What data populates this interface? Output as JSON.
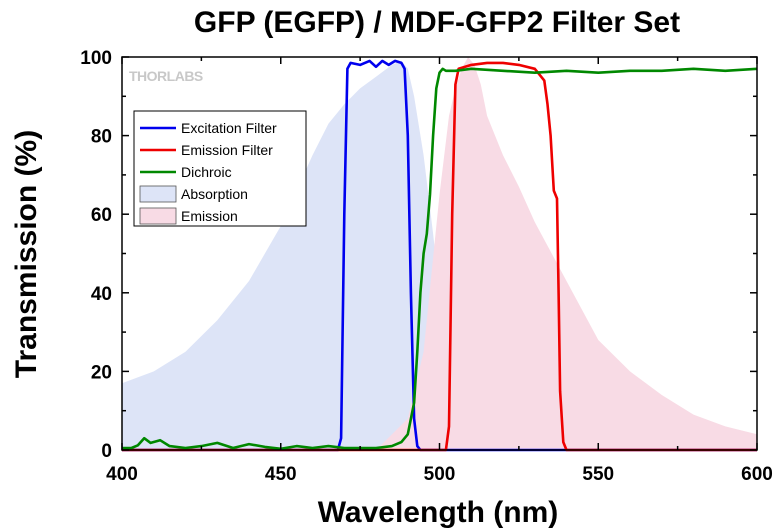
{
  "chart_data": {
    "type": "line",
    "title": "GFP (EGFP) / MDF-GFP2 Filter Set",
    "xlabel": "Wavelength (nm)",
    "ylabel": "Transmission (%)",
    "xlim": [
      400,
      600
    ],
    "ylim": [
      0,
      100
    ],
    "xticks": [
      400,
      450,
      500,
      550,
      600
    ],
    "yticks": [
      0,
      20,
      40,
      60,
      80,
      100
    ],
    "watermark": "THORLABS",
    "legend_position": "upper-left",
    "series": [
      {
        "name": "Excitation Filter",
        "kind": "line",
        "color": "#0000ee",
        "x": [
          400,
          468,
          469,
          470,
          471,
          472,
          475,
          478,
          480,
          482,
          484,
          486,
          488,
          489,
          490,
          491,
          492,
          493,
          494,
          600
        ],
        "y": [
          0,
          0,
          3,
          60,
          97,
          98.5,
          98,
          99,
          97.5,
          99,
          98,
          99,
          98.5,
          97,
          80,
          40,
          8,
          1,
          0,
          0
        ]
      },
      {
        "name": "Emission Filter",
        "kind": "line",
        "color": "#ee0000",
        "x": [
          400,
          502,
          503,
          504,
          505,
          506,
          510,
          515,
          520,
          525,
          530,
          533,
          534,
          535,
          536,
          537,
          537.5,
          538,
          539,
          540,
          600
        ],
        "y": [
          0,
          0,
          6,
          60,
          93,
          97,
          98,
          98.5,
          98.5,
          98,
          97,
          94,
          88,
          80,
          66,
          64,
          40,
          15,
          2,
          0,
          0
        ]
      },
      {
        "name": "Dichroic",
        "kind": "line",
        "color": "#008800",
        "x": [
          400,
          403,
          405,
          407,
          409,
          412,
          415,
          420,
          425,
          430,
          435,
          440,
          445,
          450,
          455,
          460,
          465,
          470,
          475,
          480,
          485,
          488,
          490,
          492,
          493,
          494,
          495,
          496,
          497,
          498,
          499,
          500,
          501,
          502,
          505,
          510,
          520,
          530,
          540,
          550,
          560,
          570,
          580,
          590,
          600
        ],
        "y": [
          0.5,
          0.5,
          1.2,
          3,
          1.8,
          2.5,
          1,
          0.5,
          1,
          1.8,
          0.5,
          1.5,
          0.8,
          0.3,
          1,
          0.5,
          1,
          0.5,
          0.5,
          0.5,
          1,
          2,
          4,
          12,
          25,
          40,
          50,
          55,
          65,
          80,
          92,
          96,
          97,
          96.5,
          96.5,
          97,
          96.5,
          96,
          96.5,
          96,
          96.5,
          96.5,
          97,
          96.5,
          97
        ]
      },
      {
        "name": "Absorption",
        "kind": "area",
        "color": "#dde4f7",
        "x": [
          400,
          410,
          420,
          430,
          440,
          450,
          455,
          460,
          465,
          470,
          475,
          480,
          485,
          488,
          490,
          492,
          495,
          498,
          500,
          503,
          506,
          510,
          515,
          520
        ],
        "y": [
          17,
          20,
          25,
          33,
          43,
          57,
          66,
          75,
          83,
          88,
          92,
          95,
          98,
          99,
          97,
          90,
          75,
          55,
          40,
          20,
          9,
          3,
          1,
          0
        ]
      },
      {
        "name": "Emission",
        "kind": "area",
        "color": "#f8dbe5",
        "x": [
          480,
          490,
          495,
          500,
          503,
          505,
          507,
          509,
          511,
          513,
          515,
          520,
          525,
          530,
          540,
          550,
          560,
          570,
          580,
          590,
          600
        ],
        "y": [
          0,
          8,
          25,
          65,
          85,
          92,
          97,
          100,
          98,
          93,
          85,
          75,
          67,
          58,
          43,
          28,
          20,
          14,
          9,
          6,
          4
        ]
      }
    ]
  }
}
